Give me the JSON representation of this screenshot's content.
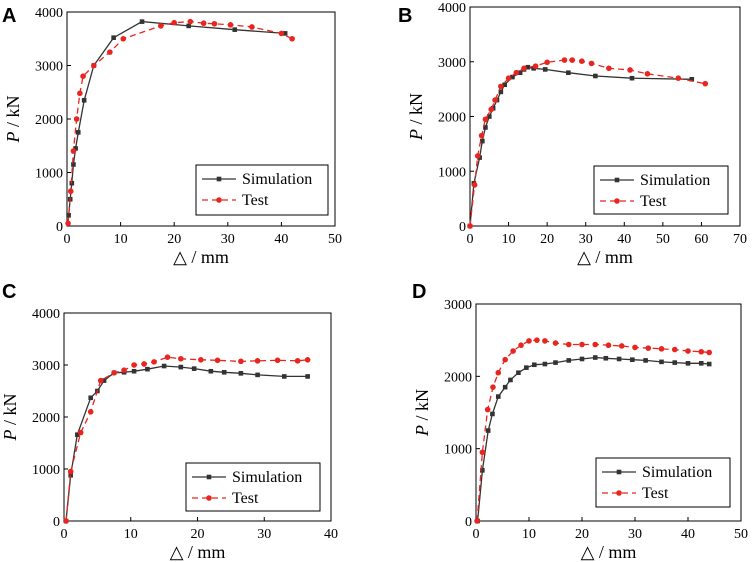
{
  "chart_data": [
    {
      "panel": "A",
      "type": "line",
      "xlabel_symbol": "△",
      "xlabel_unit": "/ mm",
      "ylabel_symbol": "P",
      "ylabel_unit": "/ kN",
      "xlim": [
        0,
        50
      ],
      "ylim": [
        0,
        4000
      ],
      "xticks": [
        0,
        10,
        20,
        30,
        40,
        50
      ],
      "yticks": [
        0,
        1000,
        2000,
        3000,
        4000
      ],
      "legend_position": "bottom-right",
      "series": [
        {
          "name": "Simulation",
          "color": "#333333",
          "style": "solid",
          "marker": "square",
          "x": [
            0.3,
            0.6,
            0.9,
            1.2,
            1.6,
            2.1,
            3.2,
            5.0,
            8.7,
            14.0,
            22.7,
            31.3,
            40.7
          ],
          "y": [
            200,
            500,
            800,
            1150,
            1450,
            1750,
            2350,
            3000,
            3520,
            3820,
            3740,
            3670,
            3600
          ]
        },
        {
          "name": "Test",
          "color": "#e8251f",
          "style": "dashed",
          "marker": "circle",
          "x": [
            0.2,
            0.7,
            1.2,
            1.8,
            2.4,
            3.0,
            5.0,
            8.0,
            10.5,
            17.5,
            20.0,
            23.0,
            25.5,
            27.5,
            30.5,
            34.5,
            40.0,
            42.0
          ],
          "y": [
            50,
            650,
            1400,
            2000,
            2480,
            2800,
            3000,
            3250,
            3500,
            3740,
            3800,
            3820,
            3790,
            3780,
            3760,
            3720,
            3600,
            3500
          ]
        }
      ]
    },
    {
      "panel": "B",
      "type": "line",
      "xlabel_symbol": "△",
      "xlabel_unit": "/ mm",
      "ylabel_symbol": "P",
      "ylabel_unit": "/ kN",
      "xlim": [
        0,
        70
      ],
      "ylim": [
        0,
        4000
      ],
      "xticks": [
        0,
        10,
        20,
        30,
        40,
        50,
        60,
        70
      ],
      "yticks": [
        0,
        1000,
        2000,
        3000,
        4000
      ],
      "legend_position": "bottom-right",
      "series": [
        {
          "name": "Simulation",
          "color": "#333333",
          "style": "solid",
          "marker": "square",
          "x": [
            0,
            1,
            2.5,
            3.2,
            4.0,
            5.0,
            6.0,
            7.0,
            8.0,
            9.0,
            11.0,
            13.0,
            14.0,
            15.0,
            16.5,
            19.5,
            25.5,
            32.5,
            42.0,
            57.5
          ],
          "y": [
            0,
            780,
            1250,
            1550,
            1800,
            2000,
            2150,
            2300,
            2450,
            2580,
            2720,
            2800,
            2860,
            2900,
            2880,
            2860,
            2800,
            2740,
            2700,
            2680
          ]
        },
        {
          "name": "Test",
          "color": "#e8251f",
          "style": "dashed",
          "marker": "circle",
          "x": [
            0,
            1.2,
            2.0,
            3.0,
            4.0,
            5.5,
            6.5,
            8.0,
            10.0,
            12.0,
            14.0,
            17.0,
            20.0,
            24.5,
            26.5,
            29.0,
            31.5,
            36.0,
            41.5,
            46.0,
            54.0,
            61.0
          ],
          "y": [
            0,
            750,
            1280,
            1650,
            1950,
            2130,
            2300,
            2550,
            2700,
            2800,
            2880,
            2920,
            2990,
            3030,
            3030,
            3010,
            2970,
            2880,
            2850,
            2780,
            2700,
            2600
          ]
        }
      ]
    },
    {
      "panel": "C",
      "type": "line",
      "xlabel_symbol": "△",
      "xlabel_unit": "/ mm",
      "ylabel_symbol": "P",
      "ylabel_unit": "/ kN",
      "xlim": [
        0,
        40
      ],
      "ylim": [
        0,
        4000
      ],
      "xticks": [
        0,
        10,
        20,
        30,
        40
      ],
      "yticks": [
        0,
        1000,
        2000,
        3000,
        4000
      ],
      "legend_position": "bottom-right",
      "series": [
        {
          "name": "Simulation",
          "color": "#333333",
          "style": "solid",
          "marker": "square",
          "x": [
            0.3,
            1.0,
            2.0,
            4.0,
            5.0,
            6.0,
            7.5,
            9.0,
            10.5,
            12.5,
            15.0,
            17.5,
            19.5,
            22.0,
            24.0,
            26.5,
            29.0,
            33.0,
            36.5
          ],
          "y": [
            0,
            880,
            1660,
            2370,
            2500,
            2700,
            2850,
            2860,
            2880,
            2920,
            2980,
            2960,
            2930,
            2880,
            2860,
            2840,
            2810,
            2780,
            2780
          ]
        },
        {
          "name": "Test",
          "color": "#e8251f",
          "style": "dashed",
          "marker": "circle",
          "x": [
            0.3,
            1.0,
            2.5,
            4.0,
            5.5,
            7.5,
            9.0,
            10.5,
            12.0,
            13.5,
            15.5,
            17.5,
            20.5,
            23.0,
            26.5,
            29.0,
            32.0,
            35.0,
            36.5
          ],
          "y": [
            0,
            950,
            1700,
            2100,
            2700,
            2850,
            2900,
            3000,
            3020,
            3060,
            3150,
            3120,
            3100,
            3090,
            3070,
            3080,
            3090,
            3080,
            3100
          ]
        }
      ]
    },
    {
      "panel": "D",
      "type": "line",
      "xlabel_symbol": "△",
      "xlabel_unit": "/ mm",
      "ylabel_symbol": "P",
      "ylabel_unit": "/ kN",
      "xlim": [
        0,
        50
      ],
      "ylim": [
        0,
        3000
      ],
      "xticks": [
        0,
        10,
        20,
        30,
        40,
        50
      ],
      "yticks": [
        0,
        1000,
        2000,
        3000
      ],
      "legend_position": "bottom-right",
      "series": [
        {
          "name": "Simulation",
          "color": "#333333",
          "style": "solid",
          "marker": "square",
          "x": [
            0.3,
            1.2,
            2.3,
            3.1,
            4.2,
            5.5,
            6.5,
            8.0,
            9.5,
            11.0,
            13.0,
            15.0,
            17.5,
            20.0,
            22.5,
            24.5,
            27.0,
            29.5,
            32.0,
            35.0,
            37.5,
            40.0,
            42.5,
            44.0
          ],
          "y": [
            0,
            700,
            1250,
            1480,
            1720,
            1850,
            1950,
            2050,
            2120,
            2160,
            2170,
            2190,
            2220,
            2240,
            2260,
            2250,
            2240,
            2230,
            2220,
            2200,
            2190,
            2180,
            2180,
            2170
          ]
        },
        {
          "name": "Test",
          "color": "#e8251f",
          "style": "dashed",
          "marker": "circle",
          "x": [
            0.2,
            1.2,
            2.2,
            3.2,
            4.2,
            5.5,
            7.0,
            8.5,
            10.0,
            11.5,
            13.0,
            15.0,
            17.5,
            20.0,
            22.5,
            25.0,
            27.5,
            30.0,
            32.5,
            35.0,
            37.5,
            40.0,
            42.5,
            44.0
          ],
          "y": [
            0,
            950,
            1540,
            1850,
            2050,
            2230,
            2350,
            2430,
            2490,
            2500,
            2490,
            2460,
            2440,
            2440,
            2440,
            2430,
            2420,
            2400,
            2390,
            2380,
            2370,
            2350,
            2340,
            2330
          ]
        }
      ]
    }
  ]
}
